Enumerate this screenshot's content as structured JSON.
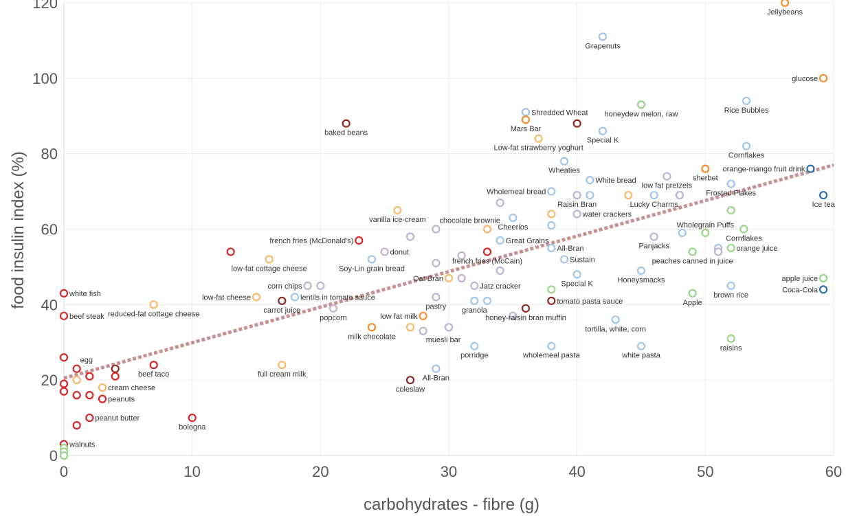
{
  "chart_data": {
    "type": "scatter",
    "xlabel": "carbohydrates - fibre (g)",
    "ylabel": "food insulin index (%)",
    "xlim": [
      0,
      60
    ],
    "ylim": [
      0,
      120
    ],
    "x_ticks": [
      0,
      10,
      20,
      30,
      40,
      50,
      60
    ],
    "y_ticks": [
      0,
      20,
      40,
      60,
      80,
      100,
      120
    ],
    "x_tick_labels": [
      "0",
      "10",
      "20",
      "30",
      "40",
      "50",
      "60"
    ],
    "y_tick_labels": [
      "0",
      "20",
      "40",
      "60",
      "80",
      "100",
      "120"
    ],
    "grid": true,
    "colors": {
      "red": "#d62728",
      "darkred": "#8b2a26",
      "orange": "#f28e2b",
      "lightorange": "#f7b86b",
      "lightblue": "#9fc5e8",
      "blue": "#2f6fb0",
      "green": "#98d48a",
      "purple": "#c3afd1",
      "trend": "#c79191"
    },
    "trendline": {
      "x": [
        0,
        60
      ],
      "y": [
        20.5,
        77
      ]
    },
    "points": [
      {
        "x": 56.2,
        "y": 120,
        "label": "Jellybeans",
        "color": "orange",
        "pos": "below"
      },
      {
        "x": 42,
        "y": 111,
        "label": "Grapenuts",
        "color": "lightblue",
        "pos": "below"
      },
      {
        "x": 59.2,
        "y": 100,
        "label": "glucose",
        "color": "orange",
        "pos": "left"
      },
      {
        "x": 53.2,
        "y": 94,
        "label": "Rice Bubbles",
        "color": "lightblue",
        "pos": "below"
      },
      {
        "x": 45,
        "y": 93,
        "label": "honeydew melon, raw",
        "color": "green",
        "pos": "below"
      },
      {
        "x": 36,
        "y": 91,
        "label": "Shredded Wheat",
        "color": "lightblue",
        "pos": "right"
      },
      {
        "x": 36,
        "y": 89,
        "label": "Mars Bar",
        "color": "orange",
        "pos": "below"
      },
      {
        "x": 22,
        "y": 88,
        "label": "baked beans",
        "color": "darkred",
        "pos": "below"
      },
      {
        "x": 40,
        "y": 88,
        "label": "",
        "color": "darkred",
        "pos": "none"
      },
      {
        "x": 42,
        "y": 86,
        "label": "Special K",
        "color": "lightblue",
        "pos": "below"
      },
      {
        "x": 37,
        "y": 84,
        "label": "Low-fat strawberry yoghurt",
        "color": "lightorange",
        "pos": "below"
      },
      {
        "x": 53.2,
        "y": 82,
        "label": "Cornflakes",
        "color": "lightblue",
        "pos": "below"
      },
      {
        "x": 39,
        "y": 78,
        "label": "Wheaties",
        "color": "lightblue",
        "pos": "below"
      },
      {
        "x": 50,
        "y": 76,
        "label": "sherbet",
        "color": "orange",
        "pos": "below"
      },
      {
        "x": 58.2,
        "y": 76,
        "label": "orange-mango fruit drink",
        "color": "blue",
        "pos": "left"
      },
      {
        "x": 47,
        "y": 74,
        "label": "low fat pretzels",
        "color": "purple",
        "pos": "below"
      },
      {
        "x": 41,
        "y": 73,
        "label": "White bread",
        "color": "lightblue",
        "pos": "right"
      },
      {
        "x": 52,
        "y": 72,
        "label": "Frosted Flakes",
        "color": "lightblue",
        "pos": "below"
      },
      {
        "x": 38,
        "y": 70,
        "label": "Wholemeal bread",
        "color": "lightblue",
        "pos": "left"
      },
      {
        "x": 40,
        "y": 69,
        "label": "Raisin Bran",
        "color": "purple",
        "pos": "below"
      },
      {
        "x": 41,
        "y": 69,
        "label": "",
        "color": "lightblue",
        "pos": "none"
      },
      {
        "x": 44,
        "y": 69,
        "label": "",
        "color": "lightorange",
        "pos": "none"
      },
      {
        "x": 46,
        "y": 69,
        "label": "Lucky Charms",
        "color": "lightblue",
        "pos": "below"
      },
      {
        "x": 48,
        "y": 69,
        "label": "",
        "color": "purple",
        "pos": "none"
      },
      {
        "x": 59.2,
        "y": 69,
        "label": "Ice tea",
        "color": "blue",
        "pos": "below"
      },
      {
        "x": 34,
        "y": 67,
        "label": "",
        "color": "purple",
        "pos": "none"
      },
      {
        "x": 26,
        "y": 65,
        "label": "vanilla ice-cream",
        "color": "lightorange",
        "pos": "below"
      },
      {
        "x": 52,
        "y": 65,
        "label": "",
        "color": "green",
        "pos": "none"
      },
      {
        "x": 38,
        "y": 64,
        "label": "",
        "color": "lightorange",
        "pos": "none"
      },
      {
        "x": 40,
        "y": 64,
        "label": "water crackers",
        "color": "purple",
        "pos": "right"
      },
      {
        "x": 35,
        "y": 63,
        "label": "Cheerios",
        "color": "lightblue",
        "pos": "below"
      },
      {
        "x": 38,
        "y": 61,
        "label": "",
        "color": "lightblue",
        "pos": "none"
      },
      {
        "x": 29,
        "y": 60,
        "label": "chocolate brownie",
        "color": "purple",
        "pos": "aboveright"
      },
      {
        "x": 33,
        "y": 60,
        "label": "",
        "color": "lightorange",
        "pos": "none"
      },
      {
        "x": 53,
        "y": 60,
        "label": "Cornflakes",
        "color": "green",
        "pos": "below"
      },
      {
        "x": 50,
        "y": 59,
        "label": "Wholegrain Puffs",
        "color": "green",
        "pos": "above"
      },
      {
        "x": 48.2,
        "y": 59,
        "label": "",
        "color": "lightblue",
        "pos": "none"
      },
      {
        "x": 27,
        "y": 58,
        "label": "",
        "color": "purple",
        "pos": "none"
      },
      {
        "x": 46,
        "y": 58,
        "label": "Panjacks",
        "color": "purple",
        "pos": "below"
      },
      {
        "x": 23,
        "y": 57,
        "label": "french fries (McDonald's)",
        "color": "red",
        "pos": "left"
      },
      {
        "x": 34,
        "y": 57,
        "label": "Great Grains",
        "color": "lightblue",
        "pos": "right"
      },
      {
        "x": 38,
        "y": 55,
        "label": "All-Bran",
        "color": "lightblue",
        "pos": "right"
      },
      {
        "x": 51,
        "y": 55,
        "label": "",
        "color": "lightblue",
        "pos": "none"
      },
      {
        "x": 52,
        "y": 55,
        "label": "orange juice",
        "color": "green",
        "pos": "right"
      },
      {
        "x": 13,
        "y": 54,
        "label": "",
        "color": "red",
        "pos": "none"
      },
      {
        "x": 25,
        "y": 54,
        "label": "donut",
        "color": "purple",
        "pos": "right"
      },
      {
        "x": 33,
        "y": 54,
        "label": "french fries (McCain)",
        "color": "red",
        "pos": "below"
      },
      {
        "x": 49,
        "y": 54,
        "label": "peaches canned in juice",
        "color": "green",
        "pos": "below"
      },
      {
        "x": 51,
        "y": 54,
        "label": "",
        "color": "purple",
        "pos": "none"
      },
      {
        "x": 31,
        "y": 53,
        "label": "",
        "color": "purple",
        "pos": "none"
      },
      {
        "x": 16,
        "y": 52,
        "label": "low-fat cottage cheese",
        "color": "lightorange",
        "pos": "below"
      },
      {
        "x": 24,
        "y": 52,
        "label": "Soy-Lin grain bread",
        "color": "lightblue",
        "pos": "below"
      },
      {
        "x": 39,
        "y": 52,
        "label": "Sustain",
        "color": "lightblue",
        "pos": "right"
      },
      {
        "x": 29,
        "y": 51,
        "label": "",
        "color": "purple",
        "pos": "none"
      },
      {
        "x": 34,
        "y": 49,
        "label": "",
        "color": "purple",
        "pos": "none"
      },
      {
        "x": 45,
        "y": 49,
        "label": "Honeysmacks",
        "color": "lightblue",
        "pos": "below"
      },
      {
        "x": 40,
        "y": 48,
        "label": "Special K",
        "color": "lightblue",
        "pos": "below"
      },
      {
        "x": 30,
        "y": 47,
        "label": "Oat Bran",
        "color": "lightorange",
        "pos": "left"
      },
      {
        "x": 31,
        "y": 47,
        "label": "",
        "color": "purple",
        "pos": "none"
      },
      {
        "x": 59.2,
        "y": 47,
        "label": "apple juice",
        "color": "green",
        "pos": "left"
      },
      {
        "x": 19,
        "y": 45,
        "label": "corn chips",
        "color": "purple",
        "pos": "left"
      },
      {
        "x": 20,
        "y": 45,
        "label": "",
        "color": "purple",
        "pos": "none"
      },
      {
        "x": 32,
        "y": 45,
        "label": "Jatz cracker",
        "color": "purple",
        "pos": "right"
      },
      {
        "x": 52,
        "y": 45,
        "label": "brown rice",
        "color": "lightblue",
        "pos": "below"
      },
      {
        "x": 38,
        "y": 44,
        "label": "",
        "color": "green",
        "pos": "none"
      },
      {
        "x": 59.2,
        "y": 44,
        "label": "Coca-Cola",
        "color": "blue",
        "pos": "left"
      },
      {
        "x": 0,
        "y": 43,
        "label": "white fish",
        "color": "red",
        "pos": "right"
      },
      {
        "x": 49,
        "y": 43,
        "label": "Apple",
        "color": "green",
        "pos": "below"
      },
      {
        "x": 15,
        "y": 42,
        "label": "low-fat cheese",
        "color": "lightorange",
        "pos": "left"
      },
      {
        "x": 18,
        "y": 42,
        "label": "lentils in tomato sauce",
        "color": "lightblue",
        "pos": "right"
      },
      {
        "x": 29,
        "y": 42,
        "label": "pastry",
        "color": "purple",
        "pos": "below"
      },
      {
        "x": 17,
        "y": 41,
        "label": "carrot juice",
        "color": "darkred",
        "pos": "below"
      },
      {
        "x": 32,
        "y": 41,
        "label": "granola",
        "color": "lightblue",
        "pos": "below"
      },
      {
        "x": 33,
        "y": 41,
        "label": "",
        "color": "lightblue",
        "pos": "none"
      },
      {
        "x": 38,
        "y": 41,
        "label": "tomato pasta sauce",
        "color": "darkred",
        "pos": "right"
      },
      {
        "x": 7,
        "y": 40,
        "label": "reduced-fat cottage cheese",
        "color": "lightorange",
        "pos": "below"
      },
      {
        "x": 21,
        "y": 39,
        "label": "popcorn",
        "color": "purple",
        "pos": "below"
      },
      {
        "x": 36,
        "y": 39,
        "label": "honey-raisin bran muffin",
        "color": "darkred",
        "pos": "below"
      },
      {
        "x": 0,
        "y": 37,
        "label": "beef steak",
        "color": "red",
        "pos": "right"
      },
      {
        "x": 28,
        "y": 37,
        "label": "low fat milk",
        "color": "orange",
        "pos": "left"
      },
      {
        "x": 35,
        "y": 37,
        "label": "",
        "color": "purple",
        "pos": "none"
      },
      {
        "x": 43,
        "y": 36,
        "label": "tortilla, white, corn",
        "color": "lightblue",
        "pos": "below"
      },
      {
        "x": 24,
        "y": 34,
        "label": "milk chocolate",
        "color": "orange",
        "pos": "below"
      },
      {
        "x": 27,
        "y": 34,
        "label": "",
        "color": "lightorange",
        "pos": "none"
      },
      {
        "x": 30,
        "y": 34,
        "label": "",
        "color": "purple",
        "pos": "none"
      },
      {
        "x": 28,
        "y": 33,
        "label": "muesli bar",
        "color": "purple",
        "pos": "belowright"
      },
      {
        "x": 52,
        "y": 31,
        "label": "raisins",
        "color": "green",
        "pos": "below"
      },
      {
        "x": 32,
        "y": 29,
        "label": "porridge",
        "color": "lightblue",
        "pos": "below"
      },
      {
        "x": 38,
        "y": 29,
        "label": "wholemeal pasta",
        "color": "lightblue",
        "pos": "below"
      },
      {
        "x": 45,
        "y": 29,
        "label": "white pasta",
        "color": "lightblue",
        "pos": "below"
      },
      {
        "x": 0,
        "y": 26,
        "label": "",
        "color": "red",
        "pos": "none"
      },
      {
        "x": 1,
        "y": 23,
        "label": "egg",
        "color": "red",
        "pos": "aboveright"
      },
      {
        "x": 7,
        "y": 24,
        "label": "beef taco",
        "color": "red",
        "pos": "below"
      },
      {
        "x": 17,
        "y": 24,
        "label": "full cream milk",
        "color": "lightorange",
        "pos": "below"
      },
      {
        "x": 4,
        "y": 23,
        "label": "",
        "color": "darkred",
        "pos": "none"
      },
      {
        "x": 29,
        "y": 23,
        "label": "All-Bran",
        "color": "lightblue",
        "pos": "below"
      },
      {
        "x": 2,
        "y": 21,
        "label": "",
        "color": "red",
        "pos": "none"
      },
      {
        "x": 4,
        "y": 21,
        "label": "",
        "color": "red",
        "pos": "none"
      },
      {
        "x": 1,
        "y": 20,
        "label": "",
        "color": "lightorange",
        "pos": "none"
      },
      {
        "x": 27,
        "y": 20,
        "label": "coleslaw",
        "color": "darkred",
        "pos": "below"
      },
      {
        "x": 0,
        "y": 19,
        "label": "",
        "color": "red",
        "pos": "none"
      },
      {
        "x": 3,
        "y": 18,
        "label": "cream cheese",
        "color": "lightorange",
        "pos": "right"
      },
      {
        "x": 0,
        "y": 17,
        "label": "",
        "color": "red",
        "pos": "none"
      },
      {
        "x": 1,
        "y": 16,
        "label": "",
        "color": "red",
        "pos": "none"
      },
      {
        "x": 2,
        "y": 16,
        "label": "",
        "color": "red",
        "pos": "none"
      },
      {
        "x": 3,
        "y": 15,
        "label": "peanuts",
        "color": "red",
        "pos": "right"
      },
      {
        "x": 2,
        "y": 10,
        "label": "peanut butter",
        "color": "red",
        "pos": "right"
      },
      {
        "x": 10,
        "y": 10,
        "label": "bologna",
        "color": "red",
        "pos": "below"
      },
      {
        "x": 1,
        "y": 8,
        "label": "",
        "color": "red",
        "pos": "none"
      },
      {
        "x": 0,
        "y": 3,
        "label": "walnuts",
        "color": "red",
        "pos": "right"
      },
      {
        "x": 0,
        "y": 2,
        "label": "",
        "color": "green",
        "pos": "none"
      },
      {
        "x": 0,
        "y": 1,
        "label": "",
        "color": "green",
        "pos": "none"
      },
      {
        "x": 0,
        "y": 0,
        "label": "",
        "color": "green",
        "pos": "none"
      }
    ]
  }
}
